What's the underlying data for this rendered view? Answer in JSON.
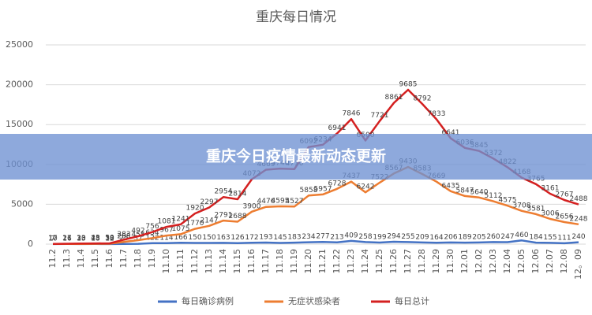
{
  "chart_data": {
    "type": "line",
    "stacked": true,
    "title": "重庆每日情况",
    "categories": [
      "11.2",
      "11.3",
      "11.4",
      "11.5",
      "11.6",
      "11.7",
      "11.8",
      "11.9",
      "11.10",
      "11.11",
      "11.12",
      "11.13",
      "11.14",
      "11.15",
      "11.16",
      "11.17",
      "11.18",
      "11.19",
      "11.20",
      "11.21",
      "11.22",
      "11.23",
      "11.24",
      "11.25",
      "11.26",
      "11.27",
      "11.28",
      "11.29",
      "11.30",
      "12.01",
      "12.02",
      "12.03",
      "12.04",
      "12.05",
      "12.06",
      "12.07",
      "12.08",
      "12。09"
    ],
    "series": [
      {
        "name": "每日确诊病例",
        "color": "#4472c4",
        "values": [
          10,
          16,
          13,
          18,
          12,
          25,
          37,
          122,
          114,
          166,
          150,
          150,
          163,
          126,
          172,
          193,
          145,
          183,
          234,
          277,
          213,
          409,
          258,
          199,
          294,
          255,
          209,
          164,
          206,
          189,
          205,
          260,
          247,
          460,
          184,
          155,
          111,
          240
        ]
      },
      {
        "name": "无症状感染者",
        "color": "#ed7d31",
        "values": [
          7,
          11,
          20,
          25,
          38,
          258,
          455,
          634,
          967,
          1075,
          1770,
          2147,
          2791,
          2688,
          3900,
          4476,
          4595,
          4527,
          5858,
          5957,
          6728,
          7437,
          6242,
          7522,
          8567,
          9430,
          8583,
          7669,
          6435,
          5847,
          5640,
          5112,
          4575,
          3708,
          3581,
          3006,
          2656,
          2248
        ]
      },
      {
        "name": "每日总计",
        "color": "#d42020",
        "values": [
          17,
          27,
          33,
          43,
          50,
          283,
          492,
          756,
          1081,
          1241,
          1920,
          2297,
          2954,
          2814,
          4072,
          4669,
          4740,
          4710,
          6092,
          6234,
          6941,
          7846,
          6500,
          7721,
          8861,
          9685,
          8792,
          7833,
          6641,
          6036,
          5845,
          5372,
          4822,
          4168,
          3765,
          3161,
          2767,
          2488
        ]
      }
    ],
    "ylim": [
      0,
      25000
    ],
    "yticks": [
      0,
      5000,
      10000,
      15000,
      20000,
      25000
    ],
    "grid": true,
    "legend": "bottom"
  },
  "banner": {
    "title": "重庆今日疫情最新动态更新"
  }
}
